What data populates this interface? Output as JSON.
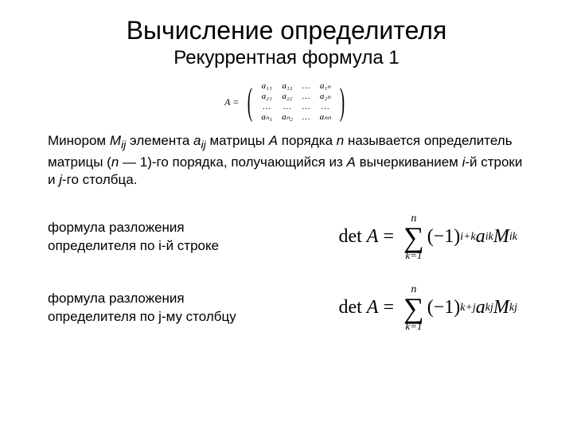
{
  "title": "Вычисление определителя",
  "subtitle": "Рекуррентная формула 1",
  "matrix": {
    "lhs": "A =",
    "rows": [
      [
        "a₁₁",
        "a₁₂",
        "…",
        "a₁ₙ"
      ],
      [
        "a₂₁",
        "a₂₂",
        "…",
        "a₂ₙ"
      ],
      [
        "…",
        "…",
        "…",
        "…"
      ],
      [
        "aₙ₁",
        "aₙ₂",
        "…",
        "aₙₙ"
      ]
    ]
  },
  "definition": {
    "p1": "Минором ",
    "mij": "M",
    "mij_sub": "ij",
    "p2": " элемента ",
    "aij": "a",
    "aij_sub": "ij",
    "p3": " матрицы ",
    "A": "A",
    "p4": " порядка ",
    "n": "n",
    "p5": " называется определитель  матрицы (",
    "n2": "n",
    "p6": " — 1)-го порядка, получающийся из ",
    "A2": "A",
    "p7": " вычеркиванием ",
    "i": "i",
    "p8": "-й строки и ",
    "j": "j",
    "p9": "-го столбца."
  },
  "row_expansion": {
    "label": "формула разложения определителя по i-й строке",
    "det_text": "det A =",
    "sum_top": "n",
    "sum_bot": "k=1",
    "power": "i+k",
    "a_sub": "ik",
    "M_sub": "ik"
  },
  "col_expansion": {
    "label": "формула разложения определителя по j-му столбцу",
    "det_text": "det A =",
    "sum_top": "n",
    "sum_bot": "k=1",
    "power": "k+j",
    "a_sub": "kj",
    "M_sub": "kj"
  },
  "style": {
    "background": "#ffffff",
    "text_color": "#000000",
    "title_fontsize": 32,
    "subtitle_fontsize": 24,
    "body_fontsize": 17,
    "formula_fontsize": 24,
    "matrix_fontsize": 11
  }
}
